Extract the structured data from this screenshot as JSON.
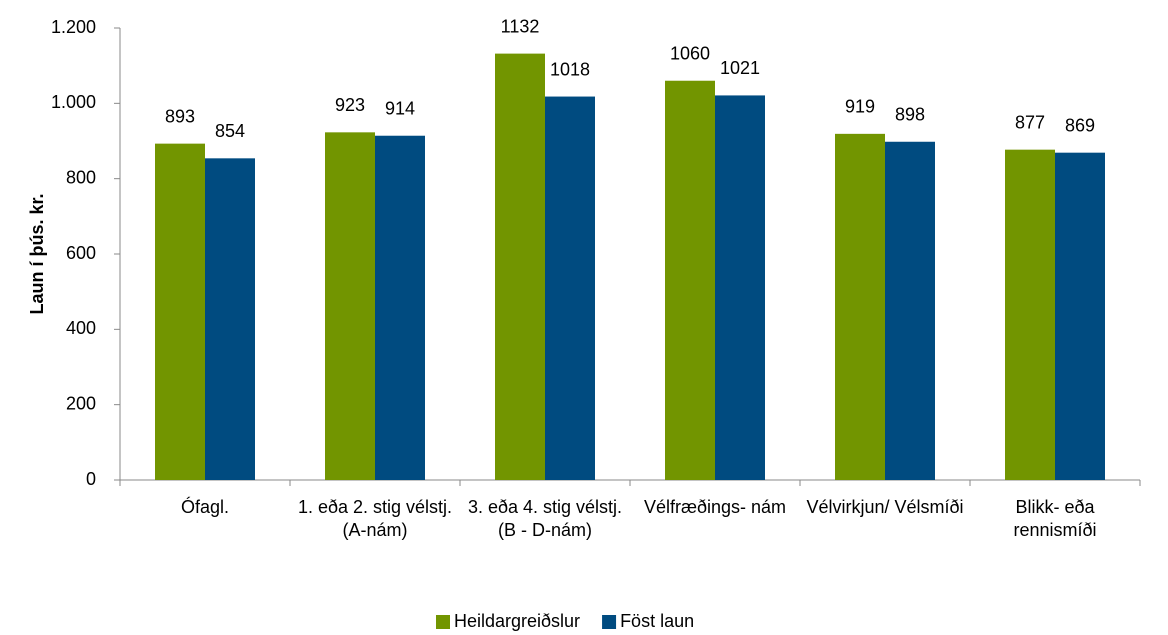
{
  "chart_data": {
    "type": "bar",
    "y_axis_label": "Laun í þús. kr.",
    "categories": [
      "Ófagl.",
      "1. eða 2. stig vélstj. (A-nám)",
      "3. eða 4. stig vélstj. (B - D-nám)",
      "Vélfræðings- nám",
      "Vélvirkjun/ Vélsmíði",
      "Blikk- eða rennismíði"
    ],
    "series": [
      {
        "name": "Heildargreiðslur",
        "color": "#729500",
        "values": [
          893,
          923,
          1132,
          1060,
          919,
          877
        ]
      },
      {
        "name": "Föst laun",
        "color": "#004b80",
        "values": [
          854,
          914,
          1018,
          1021,
          898,
          869
        ]
      }
    ],
    "ylim": [
      0,
      1200
    ],
    "yticks": [
      0,
      200,
      400,
      600,
      800,
      {
        "value": 1000,
        "label": "1.000"
      },
      {
        "value": 1200,
        "label": "1.200"
      }
    ],
    "grid": false,
    "legend": "bottom"
  }
}
